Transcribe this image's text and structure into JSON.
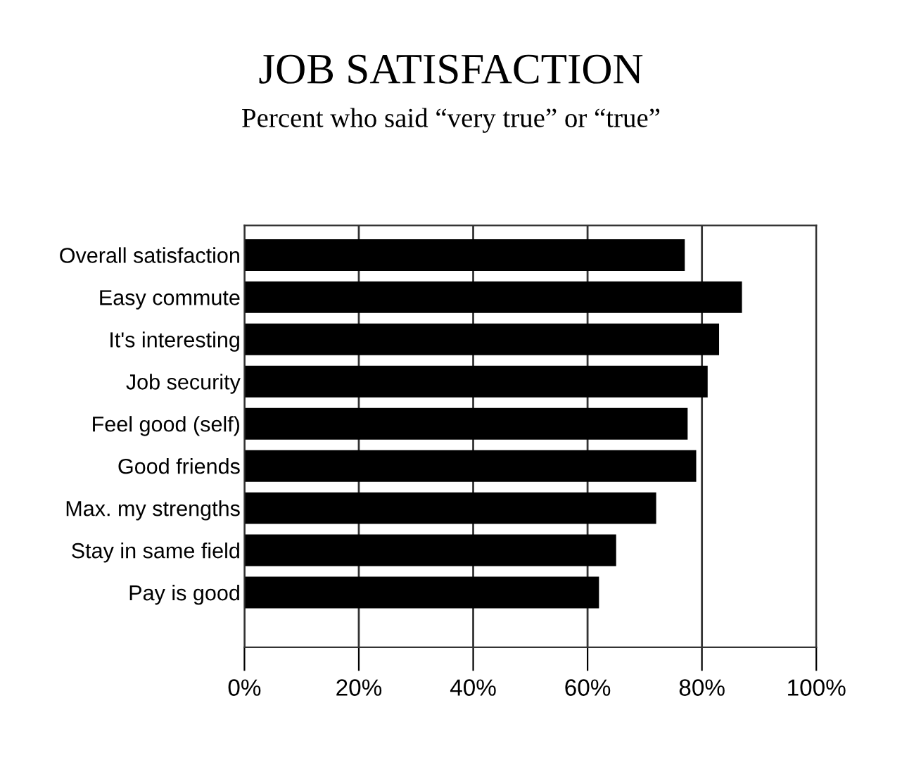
{
  "chart_data": {
    "type": "bar",
    "orientation": "horizontal",
    "title": "JOB SATISFACTION",
    "subtitle": "Percent who said “very true” or “true”",
    "categories": [
      "Overall satisfaction",
      "Easy commute",
      "It's interesting",
      "Job security",
      "Feel good (self)",
      "Good friends",
      "Max. my strengths",
      "Stay in same field",
      "Pay is good"
    ],
    "values": [
      77,
      87,
      83,
      81,
      77.5,
      79,
      72,
      65,
      62
    ],
    "color": "#000000",
    "xlim": [
      0,
      100
    ],
    "xticks": [
      {
        "value": 0,
        "label": "0%"
      },
      {
        "value": 20,
        "label": "20%"
      },
      {
        "value": 40,
        "label": "40%"
      },
      {
        "value": 60,
        "label": "60%"
      },
      {
        "value": 80,
        "label": "80%"
      },
      {
        "value": 100,
        "label": "100%"
      }
    ],
    "grid": "x"
  }
}
